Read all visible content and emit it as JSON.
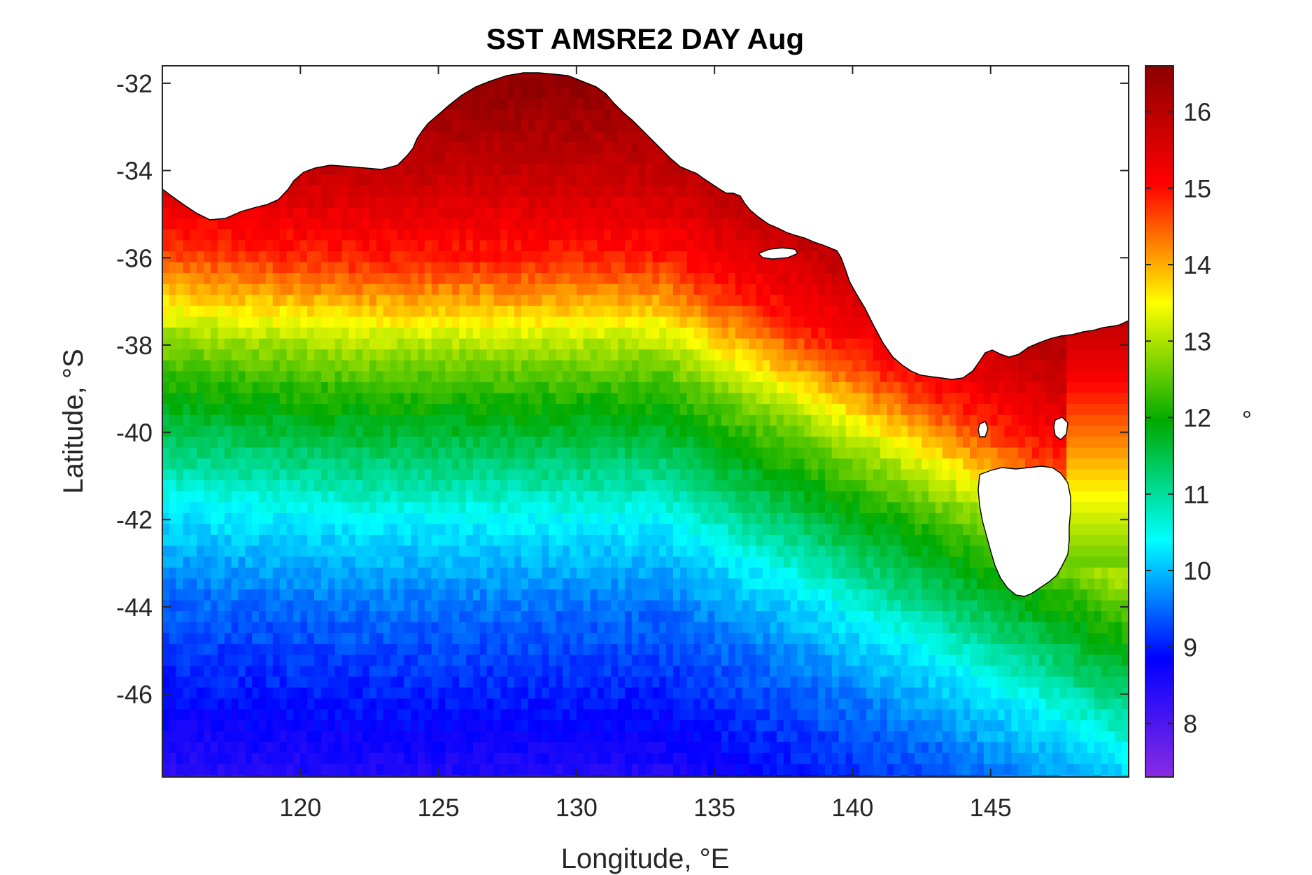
{
  "chart_data": {
    "type": "heatmap",
    "title": "SST AMSRE2 DAY Aug",
    "xlabel": "Longitude, °E",
    "ylabel": "Latitude, °S",
    "xlim": [
      115,
      150
    ],
    "ylim": [
      -47.9,
      -31.6
    ],
    "x_ticks": [
      120,
      125,
      130,
      135,
      140,
      145
    ],
    "x_tick_labels": [
      "120",
      "125",
      "130",
      "135",
      "140",
      "145"
    ],
    "y_ticks": [
      -32,
      -34,
      -36,
      -38,
      -40,
      -42,
      -44,
      -46
    ],
    "y_tick_labels": [
      "-32",
      "-34",
      "-36",
      "-38",
      "-40",
      "-42",
      "-44",
      "-46"
    ],
    "colorbar": {
      "unit_label": "°",
      "range": [
        7.3,
        16.6
      ],
      "ticks": [
        8,
        9,
        10,
        11,
        12,
        13,
        14,
        15,
        16
      ],
      "tick_labels": [
        "8",
        "9",
        "10",
        "11",
        "12",
        "13",
        "14",
        "15",
        "16"
      ],
      "colormap": [
        "#8a2be2",
        "#0000ff",
        "#00ffff",
        "#00aa00",
        "#ffff00",
        "#ff0000",
        "#8b0000"
      ]
    },
    "grid_resolution_deg": 0.25,
    "sst_bands_by_latitude": [
      {
        "lat": -32,
        "sst": 16.5
      },
      {
        "lat": -34,
        "sst": 15.8
      },
      {
        "lat": -36,
        "sst": 14.8
      },
      {
        "lat": -37,
        "sst": 13.9
      },
      {
        "lat": -38,
        "sst": 12.9
      },
      {
        "lat": -39,
        "sst": 12.2
      },
      {
        "lat": -40,
        "sst": 11.6
      },
      {
        "lat": -41,
        "sst": 11.0
      },
      {
        "lat": -42,
        "sst": 10.3
      },
      {
        "lat": -43,
        "sst": 9.9
      },
      {
        "lat": -44,
        "sst": 9.5
      },
      {
        "lat": -46,
        "sst": 9.0
      },
      {
        "lat": -48,
        "sst": 8.4
      }
    ],
    "land_color": "#ffffff",
    "coastline_color": "#000000"
  }
}
